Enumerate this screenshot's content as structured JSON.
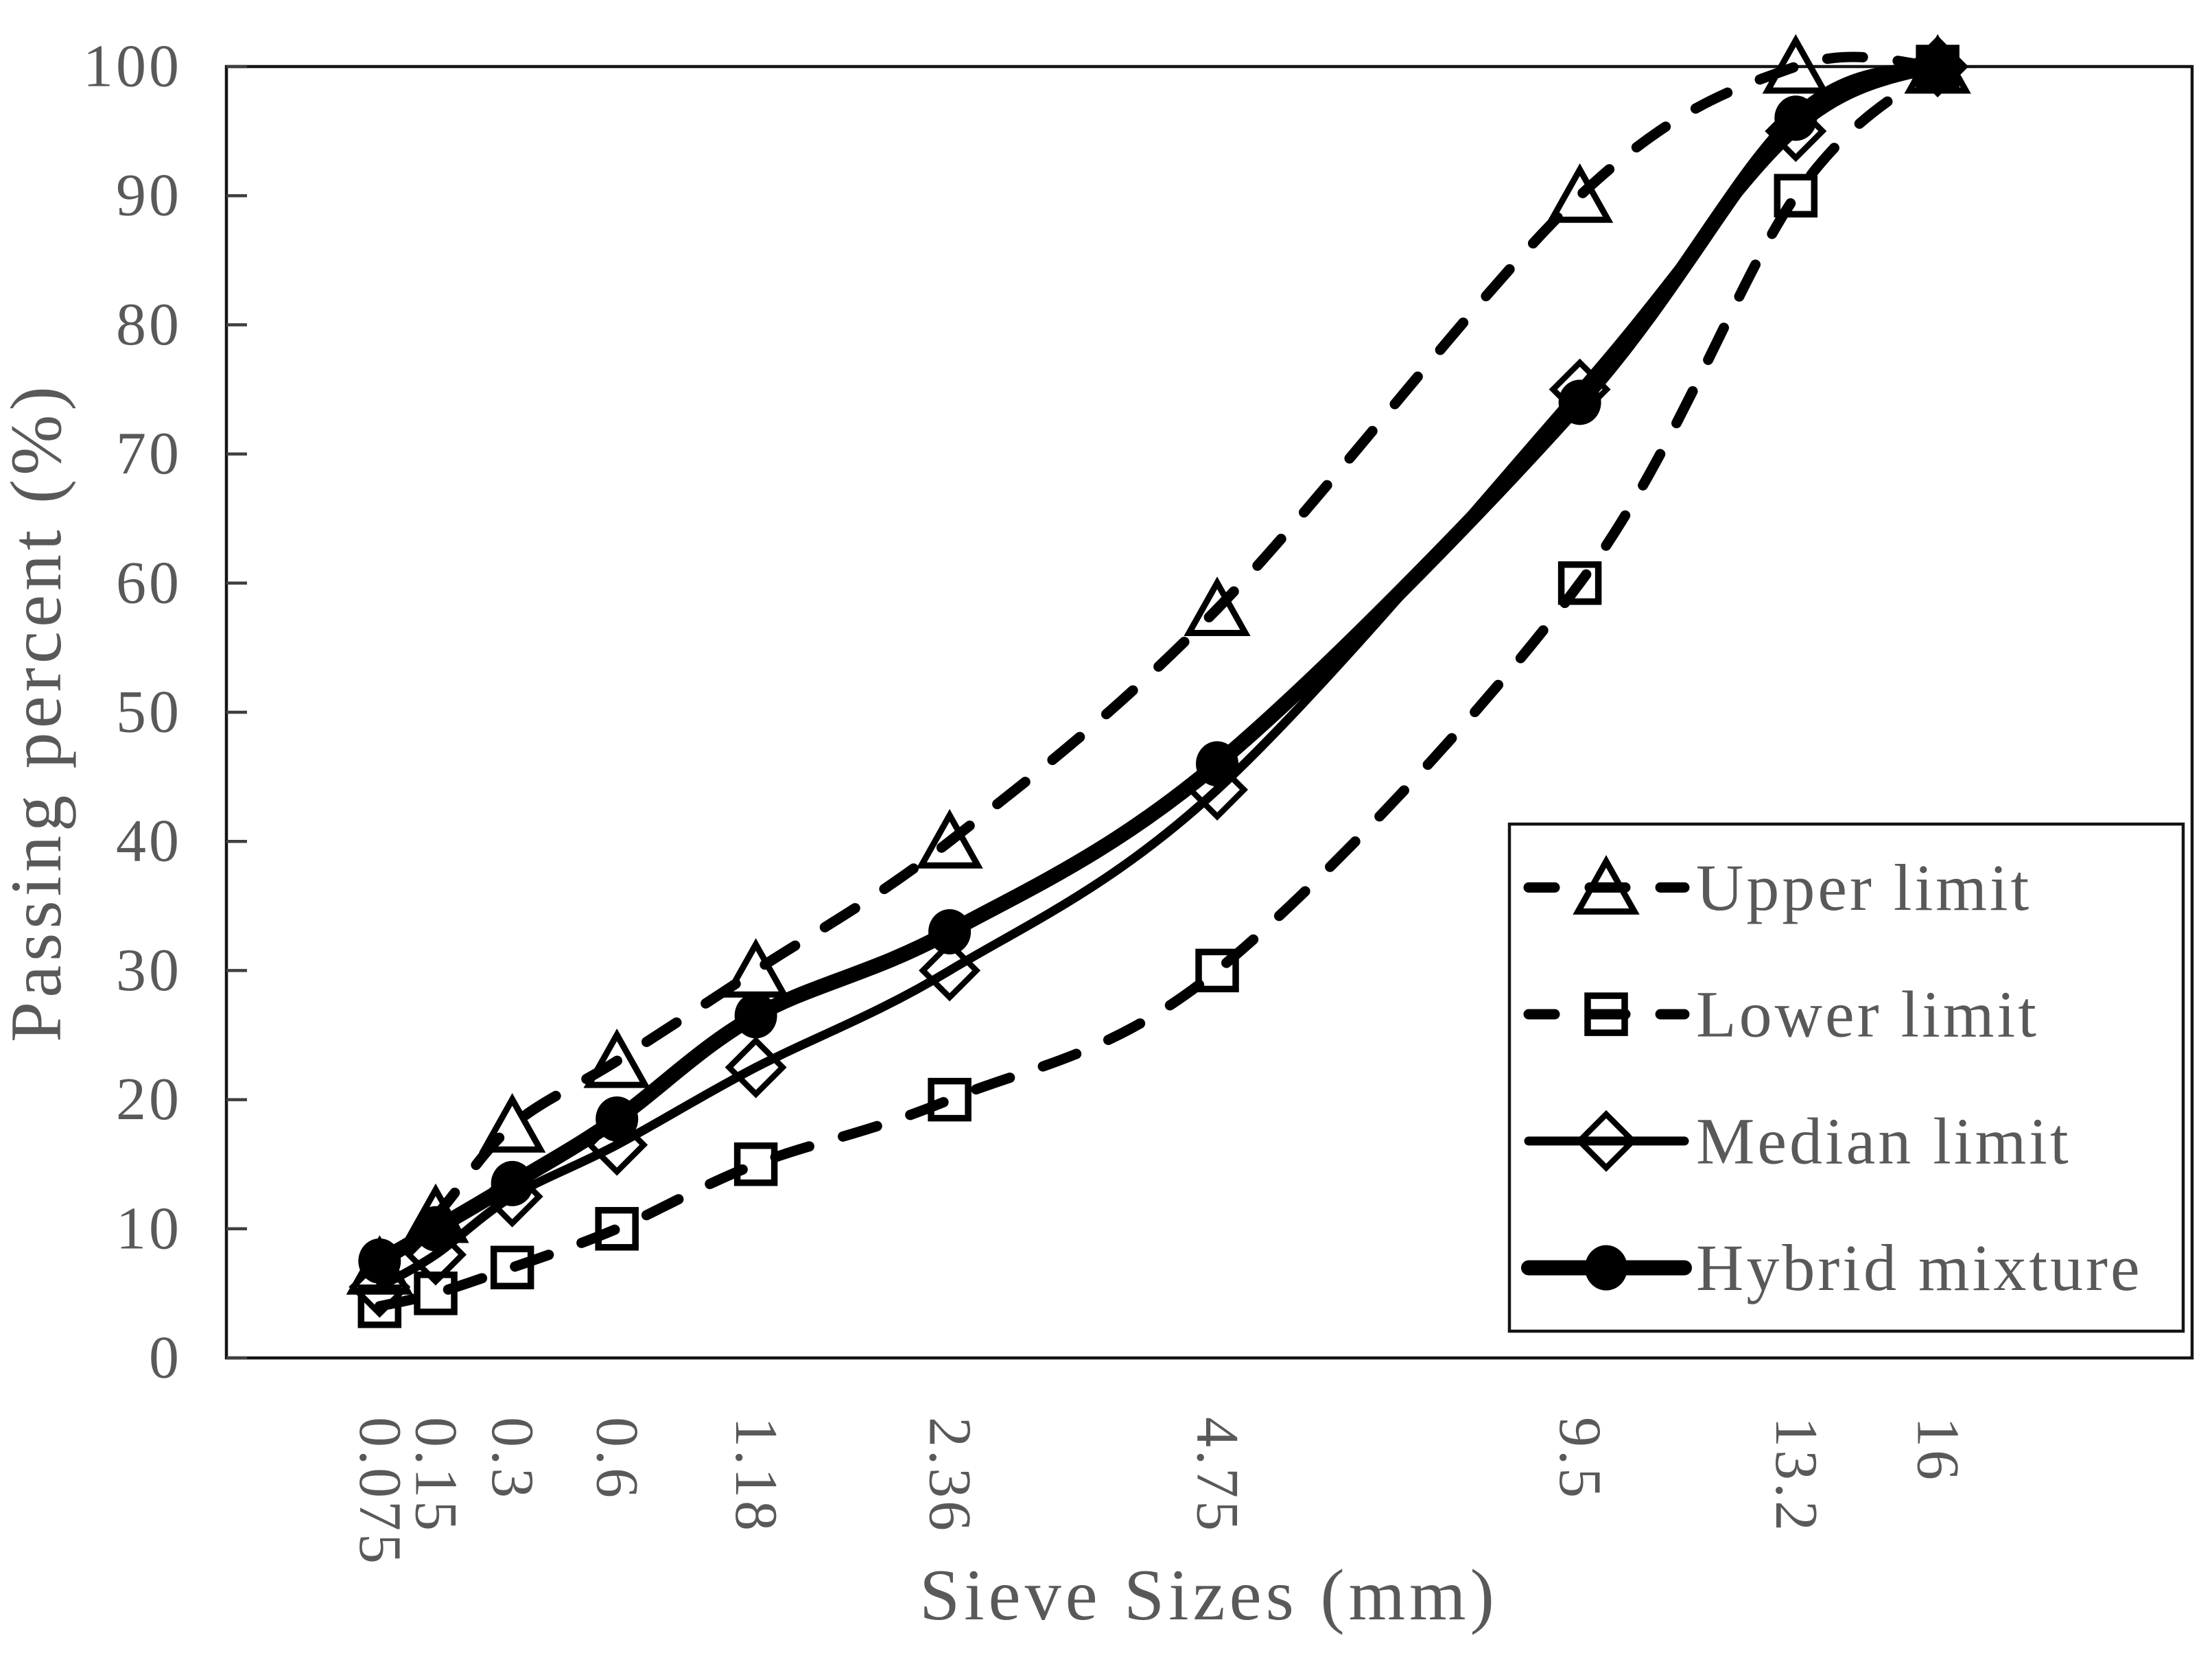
{
  "chart_data": {
    "type": "line",
    "title": "",
    "xlabel": "Sieve Sizes (mm)",
    "ylabel": "Passing percent (%)",
    "x_scale": "power",
    "x_scale_exponent": 0.45,
    "x_axis_max_mm": 21.7,
    "ylim": [
      0,
      100
    ],
    "grid": "off",
    "categories": [
      0.075,
      0.15,
      0.3,
      0.6,
      1.18,
      2.36,
      4.75,
      9.5,
      13.2,
      16
    ],
    "x_tick_labels": [
      "0.075",
      "0.15",
      "0.3",
      "0.6",
      "1.18",
      "2.36",
      "4.75",
      "9.5",
      "13.2",
      "16"
    ],
    "y_ticks": [
      0,
      10,
      20,
      30,
      40,
      50,
      60,
      70,
      80,
      90,
      100
    ],
    "y_tick_labels": [
      "0",
      "10",
      "20",
      "30",
      "40",
      "50",
      "60",
      "70",
      "80",
      "90",
      "100"
    ],
    "legend_position": "right-middle-inside",
    "series": [
      {
        "name": "Upper limit",
        "marker": "triangle",
        "line_style": "dashed",
        "stroke_width": 15,
        "values": [
          7,
          11,
          18,
          23,
          30,
          40,
          58,
          90,
          100,
          100
        ]
      },
      {
        "name": "Lower limit",
        "marker": "square",
        "line_style": "dashed",
        "stroke_width": 15,
        "values": [
          4,
          5,
          7,
          10,
          15,
          20,
          30,
          60,
          90,
          100
        ]
      },
      {
        "name": "Median limit",
        "marker": "diamond",
        "line_style": "solid",
        "stroke_width": 13,
        "values": [
          5.5,
          8,
          12.5,
          16.5,
          22.5,
          30,
          44,
          75,
          95,
          100
        ]
      },
      {
        "name": "Hybrid mixture",
        "marker": "circle-filled",
        "line_style": "solid",
        "stroke_width": 22,
        "values": [
          7.5,
          10,
          13.5,
          18.5,
          26.5,
          33,
          46,
          74,
          96,
          100
        ]
      }
    ]
  },
  "colors": {
    "ink": "#000000",
    "text": "#595959",
    "axis_box": "#141414",
    "tick": "#3f3f3f",
    "background": "#ffffff"
  }
}
